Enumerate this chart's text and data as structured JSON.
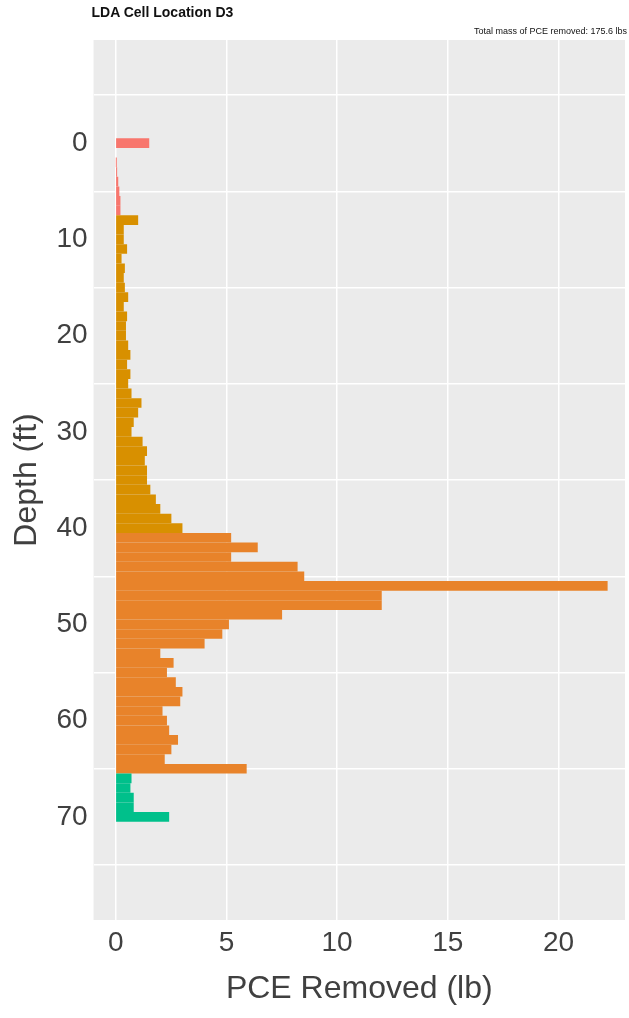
{
  "chart_data": {
    "type": "bar",
    "orientation": "horizontal",
    "title": "LDA Cell Location D3",
    "xlabel": "PCE Removed (lb)",
    "ylabel": "Depth (ft)",
    "annotations": [
      "Total mass of PCE removed: 175.6 lbs"
    ],
    "x": [
      0,
      2,
      3,
      4,
      5,
      6,
      7,
      8,
      9,
      10,
      11,
      12,
      13,
      14,
      15,
      16,
      17,
      18,
      19,
      20,
      21,
      22,
      23,
      24,
      25,
      26,
      27,
      28,
      29,
      30,
      31,
      32,
      33,
      34,
      35,
      36,
      37,
      38,
      39,
      40,
      41,
      42,
      43,
      44,
      45,
      46,
      47,
      48,
      49,
      50,
      51,
      52,
      53,
      54,
      55,
      56,
      57,
      58,
      59,
      60,
      61,
      62,
      63,
      64,
      65,
      66,
      67,
      68,
      69,
      70
    ],
    "values": [
      1.5,
      0.02,
      0.05,
      0.1,
      0.15,
      0.2,
      0.2,
      1.0,
      0.35,
      0.35,
      0.5,
      0.25,
      0.4,
      0.35,
      0.4,
      0.55,
      0.35,
      0.5,
      0.45,
      0.45,
      0.55,
      0.65,
      0.5,
      0.65,
      0.55,
      0.7,
      1.15,
      1.0,
      0.8,
      0.7,
      1.2,
      1.4,
      1.3,
      1.4,
      1.4,
      1.55,
      1.8,
      2.0,
      2.5,
      3.0,
      5.2,
      6.4,
      5.2,
      8.2,
      8.5,
      22.2,
      12.0,
      12.0,
      7.5,
      5.1,
      4.8,
      4.0,
      2.0,
      2.6,
      2.3,
      2.7,
      3.0,
      2.9,
      2.1,
      2.3,
      2.4,
      2.8,
      2.5,
      2.2,
      5.9,
      0.7,
      0.65,
      0.8,
      0.8,
      2.4
    ],
    "colors": [
      "#f8766d",
      "#f8766d",
      "#f8766d",
      "#f8766d",
      "#f8766d",
      "#f8766d",
      "#f8766d",
      "#d89000",
      "#d89000",
      "#d89000",
      "#d89000",
      "#d89000",
      "#d89000",
      "#d89000",
      "#d89000",
      "#d89000",
      "#d89000",
      "#d89000",
      "#d89000",
      "#d89000",
      "#d89000",
      "#d89000",
      "#d89000",
      "#d89000",
      "#d89000",
      "#d89000",
      "#d89000",
      "#d89000",
      "#d89000",
      "#d89000",
      "#d89000",
      "#d89000",
      "#d89000",
      "#d89000",
      "#d89000",
      "#d89000",
      "#d89000",
      "#d89000",
      "#d89000",
      "#d89000",
      "#e8832a",
      "#e8832a",
      "#e8832a",
      "#e8832a",
      "#e8832a",
      "#e8832a",
      "#e8832a",
      "#e8832a",
      "#e8832a",
      "#e8832a",
      "#e8832a",
      "#e8832a",
      "#e8832a",
      "#e8832a",
      "#e8832a",
      "#e8832a",
      "#e8832a",
      "#e8832a",
      "#e8832a",
      "#e8832a",
      "#e8832a",
      "#e8832a",
      "#e8832a",
      "#e8832a",
      "#e8832a",
      "#00c08b",
      "#00c08b",
      "#00c08b",
      "#00c08b",
      "#00c08b"
    ],
    "xlim": [
      -1,
      23
    ],
    "xticks": [
      0,
      5,
      10,
      15,
      20
    ],
    "ylim": [
      75,
      -5
    ],
    "yticks": [
      0,
      10,
      20,
      30,
      40,
      50,
      60,
      70
    ],
    "grid": true
  }
}
